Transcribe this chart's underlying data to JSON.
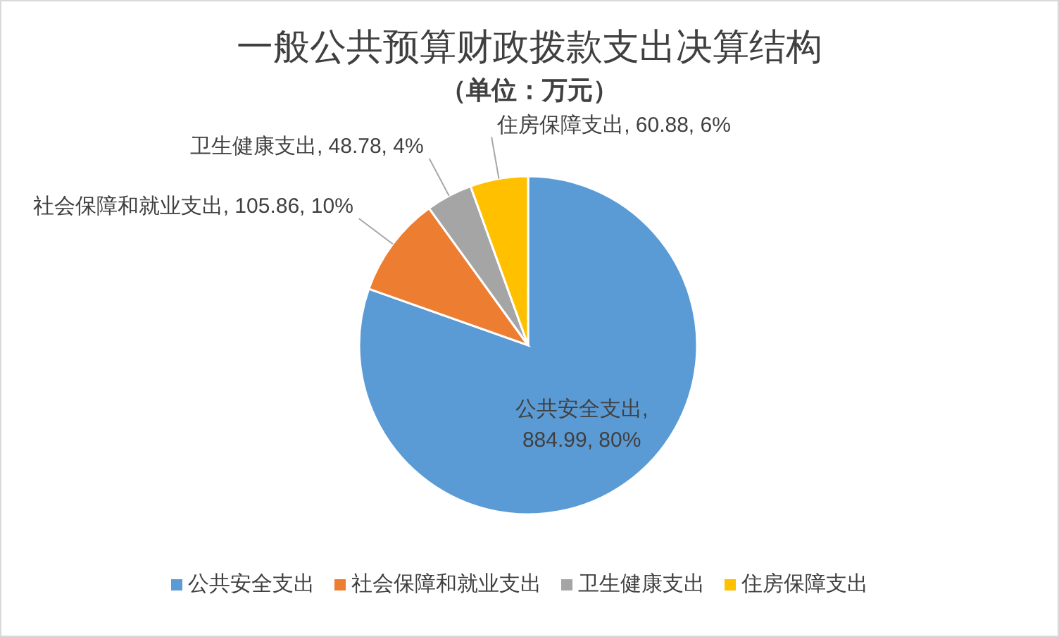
{
  "chart_data": {
    "type": "pie",
    "title": "一般公共预算财政拨款支出决算结构",
    "subtitle": "（单位：万元）",
    "categories": [
      "公共安全支出",
      "社会保障和就业支出",
      "卫生健康支出",
      "住房保障支出"
    ],
    "values": [
      884.99,
      105.86,
      48.78,
      60.88
    ],
    "colors": [
      "#5b9bd5",
      "#ed7d31",
      "#a5a5a5",
      "#ffc000"
    ],
    "value_labels": [
      "公共安全支出, 884.99, 80%",
      "社会保障和就业支出, 105.86, 10%",
      "卫生健康支出, 48.78, 4%",
      "住房保障支出, 60.88, 6%"
    ],
    "legend": "bottom"
  }
}
